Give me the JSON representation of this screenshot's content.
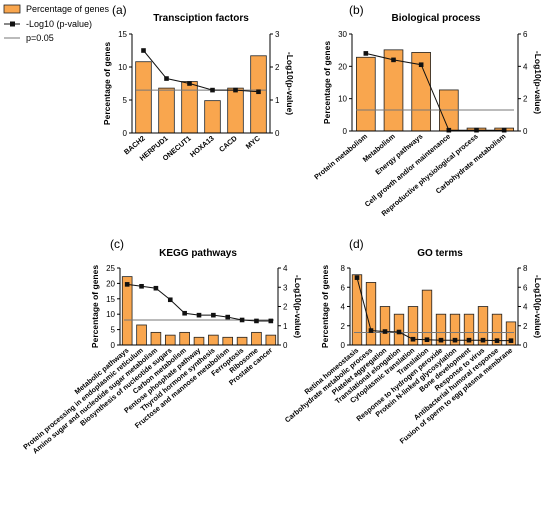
{
  "legend": {
    "bar": "Percentage of genes",
    "line": "-Log10 (p-value)",
    "threshold": "p=0.05"
  },
  "colors": {
    "bar_fill": "#f9a64e",
    "bar_stroke": "#222222",
    "line": "#111111",
    "threshold": "#777777"
  },
  "chart_data": [
    {
      "panel": "(a)",
      "type": "bar",
      "title": "Transciption factors",
      "ylabel": "Percentage of genes",
      "y2label": "-Log10(p-value)",
      "ylim": [
        0,
        15
      ],
      "yticks": [
        0,
        5,
        10,
        15
      ],
      "y2lim": [
        0,
        3
      ],
      "y2ticks": [
        0,
        1,
        2,
        3
      ],
      "threshold": 1.3,
      "categories": [
        "BACH2",
        "HERPUD1",
        "ONECUT1",
        "HOXA13",
        "CACD",
        "MYC"
      ],
      "series": [
        {
          "name": "Percentage of genes",
          "axis": "left",
          "values": [
            10.8,
            6.8,
            7.8,
            4.9,
            6.8,
            11.7
          ]
        },
        {
          "name": "-Log10 (p-value)",
          "axis": "right",
          "values": [
            2.5,
            1.65,
            1.5,
            1.3,
            1.3,
            1.25
          ]
        }
      ]
    },
    {
      "panel": "(b)",
      "type": "bar",
      "title": "Biological process",
      "ylabel": "Percentage of genes",
      "y2label": "-Log10(p-value)",
      "ylim": [
        0,
        30
      ],
      "yticks": [
        0,
        10,
        20,
        30
      ],
      "y2lim": [
        0,
        6
      ],
      "y2ticks": [
        0,
        2,
        4,
        6
      ],
      "threshold": 1.3,
      "categories": [
        "Protein metabolism",
        "Metabolism",
        "Energy pathways",
        "Cell growth and/or maintenance",
        "Reproductive physiological process",
        "Carbohydrate metabolism"
      ],
      "series": [
        {
          "name": "Percentage of genes",
          "axis": "left",
          "values": [
            22.8,
            25.1,
            24.3,
            12.7,
            0.9,
            0.9
          ]
        },
        {
          "name": "-Log10 (p-value)",
          "axis": "right",
          "values": [
            4.8,
            4.4,
            4.1,
            0.05,
            0.05,
            0.05
          ]
        }
      ]
    },
    {
      "panel": "(c)",
      "type": "bar",
      "title": "KEGG pathways",
      "ylabel": "Percentage of genes",
      "y2label": "-Log10(p-value)",
      "ylim": [
        0,
        25
      ],
      "yticks": [
        0,
        5,
        10,
        15,
        20,
        25
      ],
      "y2lim": [
        0,
        4
      ],
      "y2ticks": [
        0,
        1,
        2,
        3,
        4
      ],
      "threshold": 1.3,
      "categories": [
        "Metabolic pathways",
        "Protein processing in endoplasmic reticulum",
        "Amino sugar and nucleotide sugar metabolism",
        "Biosynthesis of nucleotide sugars",
        "Carbon metabolism",
        "Pentose phosphate pathway",
        "Thyroid hormone synthesis",
        "Fructose and mannose metabolism",
        "Ferroptosis",
        "Ribosome",
        "Prostate cancer"
      ],
      "series": [
        {
          "name": "Percentage of genes",
          "axis": "left",
          "values": [
            22.2,
            6.5,
            4.1,
            3.2,
            4.1,
            2.5,
            3.2,
            2.5,
            2.5,
            4.1,
            3.2
          ]
        },
        {
          "name": "-Log10 (p-value)",
          "axis": "right",
          "values": [
            3.15,
            3.05,
            2.95,
            2.35,
            1.65,
            1.55,
            1.55,
            1.45,
            1.3,
            1.25,
            1.25
          ]
        }
      ]
    },
    {
      "panel": "(d)",
      "type": "bar",
      "title": "GO terms",
      "ylabel": "Percentage of genes",
      "y2label": "-Log10(p-value)",
      "ylim": [
        0,
        8
      ],
      "yticks": [
        0,
        2,
        4,
        6,
        8
      ],
      "y2lim": [
        0,
        8
      ],
      "y2ticks": [
        0,
        2,
        4,
        6,
        8
      ],
      "threshold": 1.3,
      "categories": [
        "Retina homeostasis",
        "Carbohydrate metabolic process",
        "Platelet aggregation",
        "Translational elongation",
        "Cytoplasmic translation",
        "Translation",
        "Response to hydrogen peroxide",
        "Protein N-linked glycosylation",
        "Bone development",
        "Response to virus",
        "Antibacterial humoral response",
        "Fusion of sperm to egg plasma membrane"
      ],
      "series": [
        {
          "name": "Percentage of genes",
          "axis": "left",
          "values": [
            7.3,
            6.5,
            4.0,
            3.2,
            4.0,
            5.7,
            3.2,
            3.2,
            3.2,
            4.0,
            3.2,
            2.4
          ]
        },
        {
          "name": "-Log10 (p-value)",
          "axis": "right",
          "values": [
            7.0,
            1.5,
            1.4,
            1.35,
            0.6,
            0.55,
            0.5,
            0.5,
            0.5,
            0.5,
            0.45,
            0.45
          ]
        }
      ]
    }
  ]
}
